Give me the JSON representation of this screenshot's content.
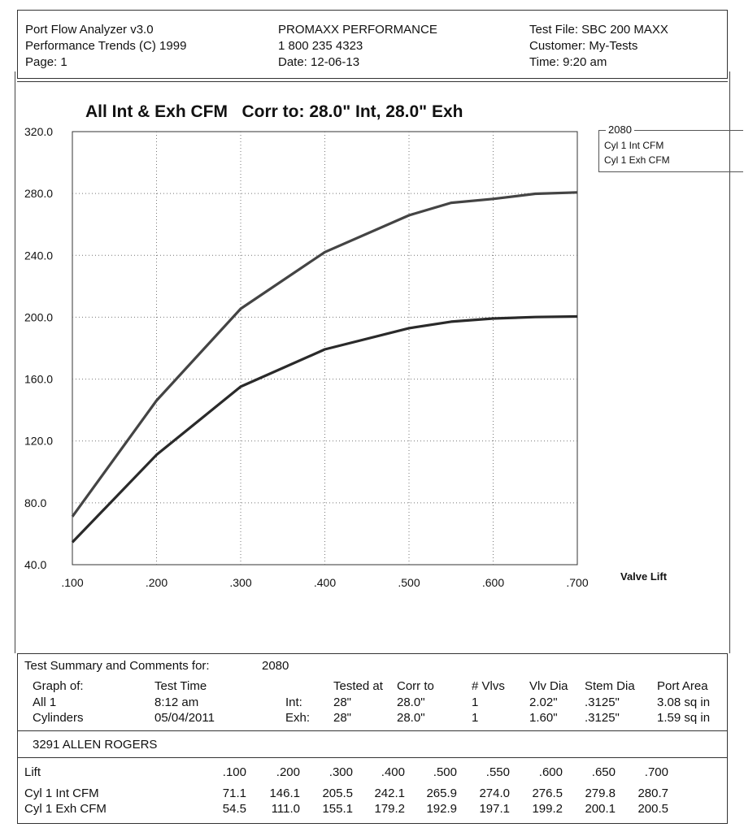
{
  "header": {
    "left": [
      "Port Flow Analyzer v3.0",
      "Performance Trends (C) 1999",
      "Page:  1"
    ],
    "center": [
      "PROMAXX PERFORMANCE",
      "1 800 235 4323",
      "Date: 12-06-13"
    ],
    "right": [
      "Test File: SBC 200 MAXX",
      "Customer: My-Tests",
      "Time: 9:20 am"
    ]
  },
  "chart_data": {
    "type": "line",
    "title": "All Int & Exh CFM   Corr to: 28.0\" Int, 28.0\" Exh",
    "xlabel": "Valve Lift",
    "ylabel": "",
    "x": [
      0.1,
      0.2,
      0.3,
      0.4,
      0.5,
      0.55,
      0.6,
      0.65,
      0.7
    ],
    "xlim": [
      0.1,
      0.7
    ],
    "ylim": [
      40,
      320
    ],
    "xticks": [
      ".100",
      ".200",
      ".300",
      ".400",
      ".500",
      ".600",
      ".700"
    ],
    "yticks": [
      "320.0",
      "280.0",
      "240.0",
      "200.0",
      "160.0",
      "120.0",
      "80.0",
      "40.0"
    ],
    "grid": true,
    "legend_title": "2080",
    "legend_placement": "top-right outside",
    "series": [
      {
        "name": "Cyl 1 Int CFM",
        "values": [
          71.1,
          146.1,
          205.5,
          242.1,
          265.9,
          274.0,
          276.5,
          279.8,
          280.7
        ],
        "color": "#444444"
      },
      {
        "name": "Cyl 1 Exh CFM",
        "values": [
          54.5,
          111.0,
          155.1,
          179.2,
          192.9,
          197.1,
          199.2,
          200.1,
          200.5
        ],
        "color": "#2a2a2a"
      }
    ]
  },
  "summary": {
    "heading": "Test Summary and Comments for:",
    "heading_id": "2080",
    "col_graph_of": "Graph of:",
    "col_test_time": "Test Time",
    "col_tested_at": "Tested at",
    "col_corr_to": "Corr to",
    "col_vlvs": "# Vlvs",
    "col_vlv_dia": "Vlv Dia",
    "col_stem_dia": "Stem Dia",
    "col_port_area": "Port Area",
    "row1": {
      "graph": "All 1",
      "time": "8:12 am",
      "kind": "Int:",
      "tested": "28\"",
      "corr": "28.0\"",
      "vlvs": "1",
      "vlv_dia": "2.02\"",
      "stem_dia": ".3125\"",
      "port_area": "3.08 sq in"
    },
    "row2": {
      "graph": "Cylinders",
      "time": "05/04/2011",
      "kind": "Exh:",
      "tested": "28\"",
      "corr": "28.0\"",
      "vlvs": "1",
      "vlv_dia": "1.60\"",
      "stem_dia": ".3125\"",
      "port_area": "1.59 sq in"
    },
    "comment": "3291 ALLEN ROGERS"
  },
  "table": {
    "lift_label": "Lift",
    "lifts": [
      ".100",
      ".200",
      ".300",
      ".400",
      ".500",
      ".550",
      ".600",
      ".650",
      ".700"
    ],
    "rows": [
      {
        "label": "Cyl 1 Int CFM",
        "values": [
          "71.1",
          "146.1",
          "205.5",
          "242.1",
          "265.9",
          "274.0",
          "276.5",
          "279.8",
          "280.7"
        ]
      },
      {
        "label": "Cyl 1 Exh CFM",
        "values": [
          "54.5",
          "111.0",
          "155.1",
          "179.2",
          "192.9",
          "197.1",
          "199.2",
          "200.1",
          "200.5"
        ]
      }
    ]
  }
}
